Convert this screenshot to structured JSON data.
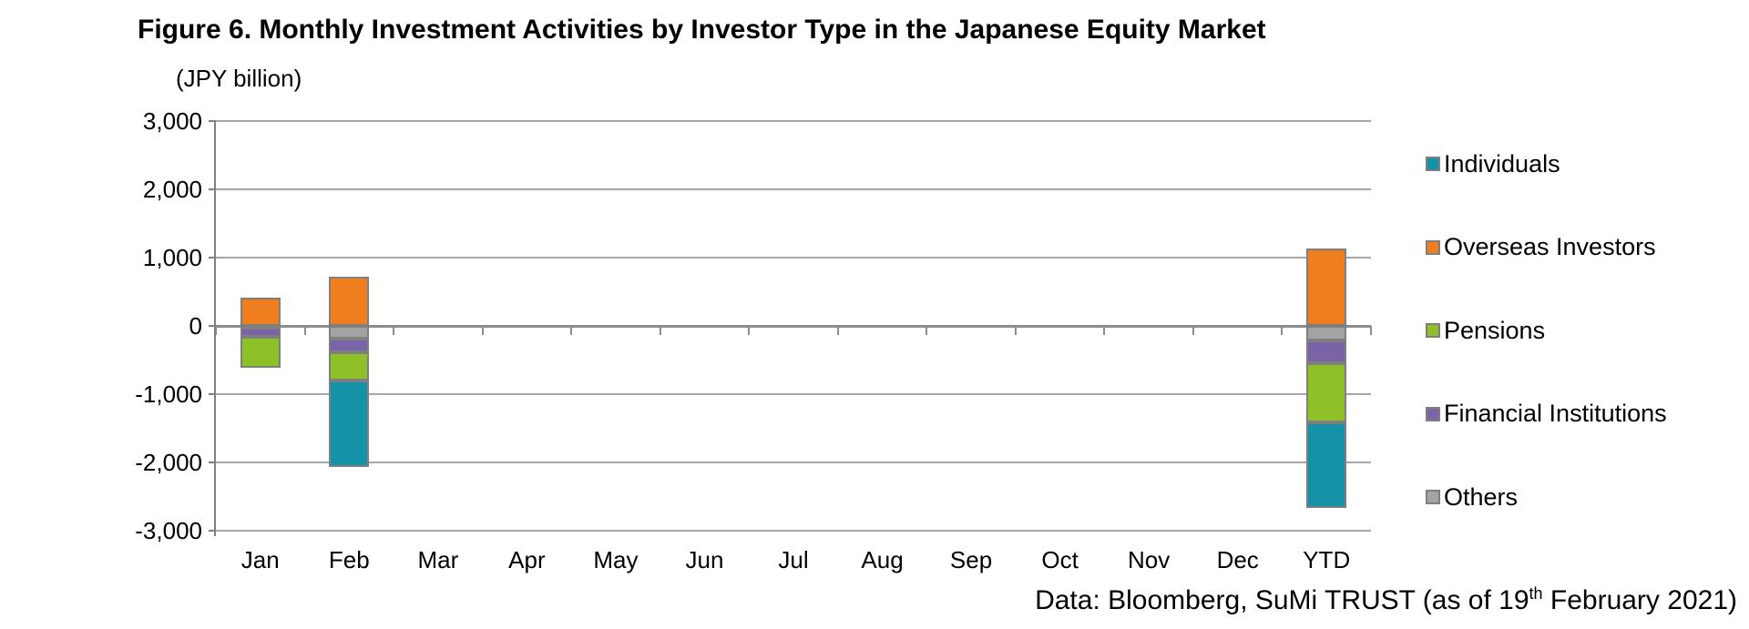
{
  "figure": {
    "title": "Figure 6. Monthly Investment Activities by Investor Type in the Japanese Equity Market",
    "source_note": {
      "prefix": "Data: Bloomberg, SuMi TRUST (as of 19",
      "superscript": "th",
      "suffix": " February 2021)"
    }
  },
  "chart_data": {
    "type": "bar",
    "stacked": true,
    "title": "Figure 6. Monthly Investment Activities by Investor Type in the Japanese Equity Market",
    "unit_label": "(JPY billion)",
    "xlabel": "",
    "ylabel": "(JPY billion)",
    "categories": [
      "Jan",
      "Feb",
      "Mar",
      "Apr",
      "May",
      "Jun",
      "Jul",
      "Aug",
      "Sep",
      "Oct",
      "Nov",
      "Dec",
      "YTD"
    ],
    "series": [
      {
        "name": "Individuals",
        "color": "#1592A7",
        "values": [
          0,
          -1260,
          0,
          0,
          0,
          0,
          0,
          0,
          0,
          0,
          0,
          0,
          -1260
        ]
      },
      {
        "name": "Overseas Investors",
        "color": "#EE7E1E",
        "values": [
          410,
          720,
          0,
          0,
          0,
          0,
          0,
          0,
          0,
          0,
          0,
          0,
          1130
        ]
      },
      {
        "name": "Pensions",
        "color": "#8EC127",
        "values": [
          -450,
          -410,
          0,
          0,
          0,
          0,
          0,
          0,
          0,
          0,
          0,
          0,
          -860
        ]
      },
      {
        "name": "Financial Institutions",
        "color": "#7A64A8",
        "values": [
          -140,
          -200,
          0,
          0,
          0,
          0,
          0,
          0,
          0,
          0,
          0,
          0,
          -340
        ]
      },
      {
        "name": "Others",
        "color": "#A3A3A3",
        "values": [
          -20,
          -190,
          0,
          0,
          0,
          0,
          0,
          0,
          0,
          0,
          0,
          0,
          -210
        ]
      }
    ],
    "stack_order_from_axis": [
      "Others",
      "Financial Institutions",
      "Pensions",
      "Overseas Investors",
      "Individuals"
    ],
    "ylim": [
      -3000,
      3000
    ],
    "ytick_interval": 1000,
    "yticks": {
      "values": [
        3000,
        2000,
        1000,
        0,
        -1000,
        -2000,
        -3000
      ],
      "labels": [
        "3,000",
        "2,000",
        "1,000",
        "0",
        "-1,000",
        "-2,000",
        "-3,000"
      ]
    },
    "grid": true,
    "legend_position": "right",
    "gridline_color": "#A6A6A6",
    "axis_color": "#808080",
    "bar_outline_color": "#7F7F7F"
  }
}
